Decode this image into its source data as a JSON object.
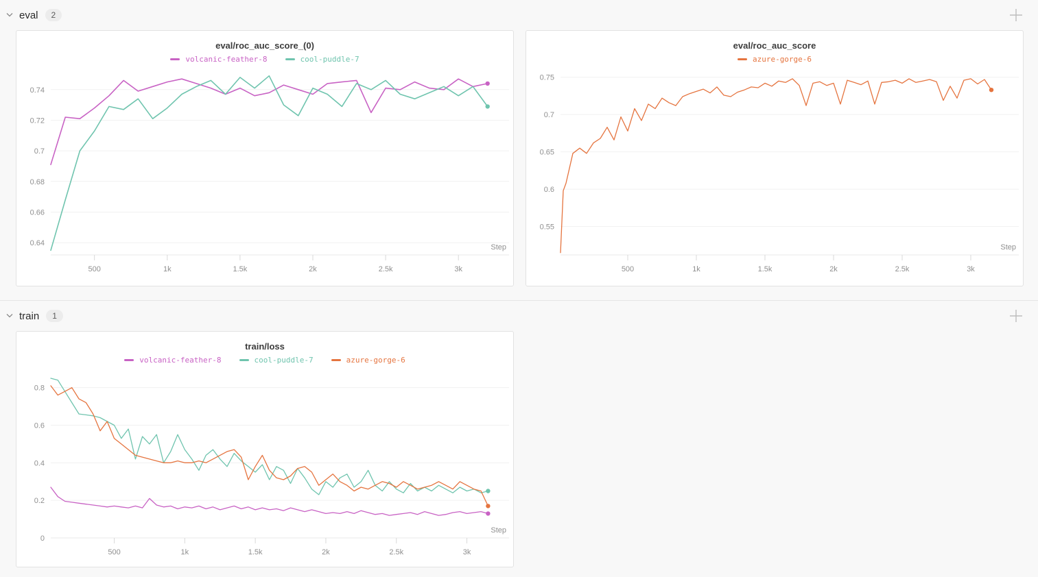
{
  "sections": [
    {
      "id": "eval",
      "label": "eval",
      "count": "2"
    },
    {
      "id": "train",
      "label": "train",
      "count": "1"
    }
  ],
  "icons": {
    "collapse": "chevron-down-icon",
    "add_panel": "plus-icon"
  },
  "runs": [
    {
      "name": "volcanic-feather-8",
      "color": "#c862c4"
    },
    {
      "name": "cool-puddle-7",
      "color": "#6fc4ae"
    },
    {
      "name": "azure-gorge-6",
      "color": "#e5743f"
    }
  ],
  "chart_data": [
    {
      "id": "eval_roc_auc_score_0",
      "section": "eval",
      "type": "line",
      "title": "eval/roc_auc_score_(0)",
      "xlabel": "Step",
      "grid": "horizontal",
      "legend_position": "top",
      "xlim": [
        200,
        3310
      ],
      "ylim": [
        0.632,
        0.752
      ],
      "x_ticks": [
        500,
        1000,
        1500,
        2000,
        2500,
        3000
      ],
      "x_tick_labels": [
        "500",
        "1k",
        "1.5k",
        "2k",
        "2.5k",
        "3k"
      ],
      "y_ticks": [
        0.64,
        0.66,
        0.68,
        0.7,
        0.72,
        0.74
      ],
      "y_tick_labels": [
        "0.64",
        "0.66",
        "0.68",
        "0.7",
        "0.72",
        "0.74"
      ],
      "x": [
        200,
        300,
        400,
        500,
        600,
        700,
        800,
        900,
        1000,
        1100,
        1200,
        1300,
        1400,
        1500,
        1600,
        1700,
        1800,
        1900,
        2000,
        2100,
        2200,
        2300,
        2400,
        2500,
        2600,
        2700,
        2800,
        2900,
        3000,
        3100,
        3200
      ],
      "series": [
        {
          "name": "volcanic-feather-8",
          "color": "#c862c4",
          "end_marker": true,
          "values": [
            0.691,
            0.722,
            0.721,
            0.728,
            0.736,
            0.746,
            0.739,
            0.742,
            0.745,
            0.747,
            0.744,
            0.741,
            0.737,
            0.741,
            0.736,
            0.738,
            0.743,
            0.74,
            0.737,
            0.744,
            0.745,
            0.746,
            0.725,
            0.741,
            0.74,
            0.745,
            0.741,
            0.74,
            0.747,
            0.742,
            0.744
          ]
        },
        {
          "name": "cool-puddle-7",
          "color": "#6fc4ae",
          "end_marker": true,
          "values": [
            0.635,
            0.668,
            0.7,
            0.713,
            0.729,
            0.727,
            0.734,
            0.721,
            0.728,
            0.737,
            0.742,
            0.746,
            0.737,
            0.748,
            0.741,
            0.749,
            0.73,
            0.723,
            0.741,
            0.737,
            0.729,
            0.744,
            0.74,
            0.746,
            0.737,
            0.734,
            0.738,
            0.742,
            0.736,
            0.742,
            0.729
          ]
        }
      ]
    },
    {
      "id": "eval_roc_auc_score",
      "section": "eval",
      "type": "line",
      "title": "eval/roc_auc_score",
      "xlabel": "Step",
      "grid": "horizontal",
      "legend_position": "top",
      "xlim": [
        10,
        3310
      ],
      "ylim": [
        0.512,
        0.758
      ],
      "x_ticks": [
        500,
        1000,
        1500,
        2000,
        2500,
        3000
      ],
      "x_tick_labels": [
        "500",
        "1k",
        "1.5k",
        "2k",
        "2.5k",
        "3k"
      ],
      "y_ticks": [
        0.55,
        0.6,
        0.65,
        0.7,
        0.75
      ],
      "y_tick_labels": [
        "0.55",
        "0.6",
        "0.65",
        "0.7",
        "0.75"
      ],
      "x": [
        10,
        30,
        50,
        100,
        150,
        200,
        250,
        300,
        350,
        400,
        450,
        500,
        550,
        600,
        650,
        700,
        750,
        800,
        850,
        900,
        950,
        1000,
        1050,
        1100,
        1150,
        1200,
        1250,
        1300,
        1350,
        1400,
        1450,
        1500,
        1550,
        1600,
        1650,
        1700,
        1750,
        1800,
        1850,
        1900,
        1950,
        2000,
        2050,
        2100,
        2150,
        2200,
        2250,
        2300,
        2350,
        2400,
        2450,
        2500,
        2550,
        2600,
        2650,
        2700,
        2750,
        2800,
        2850,
        2900,
        2950,
        3000,
        3050,
        3100,
        3150
      ],
      "series": [
        {
          "name": "azure-gorge-6",
          "color": "#e5743f",
          "end_marker": true,
          "values": [
            0.515,
            0.598,
            0.608,
            0.648,
            0.655,
            0.648,
            0.662,
            0.668,
            0.683,
            0.666,
            0.697,
            0.678,
            0.708,
            0.692,
            0.714,
            0.708,
            0.722,
            0.716,
            0.712,
            0.724,
            0.728,
            0.731,
            0.734,
            0.729,
            0.737,
            0.726,
            0.724,
            0.73,
            0.733,
            0.737,
            0.736,
            0.742,
            0.738,
            0.745,
            0.743,
            0.748,
            0.739,
            0.712,
            0.742,
            0.744,
            0.739,
            0.742,
            0.714,
            0.746,
            0.743,
            0.74,
            0.745,
            0.714,
            0.743,
            0.744,
            0.746,
            0.742,
            0.748,
            0.743,
            0.745,
            0.747,
            0.744,
            0.719,
            0.738,
            0.722,
            0.746,
            0.748,
            0.741,
            0.747,
            0.733
          ]
        }
      ]
    },
    {
      "id": "train_loss",
      "section": "train",
      "type": "line",
      "title": "train/loss",
      "xlabel": "Step",
      "grid": "horizontal",
      "legend_position": "top",
      "xlim": [
        50,
        3260
      ],
      "ylim": [
        0,
        0.89
      ],
      "x_ticks": [
        500,
        1000,
        1500,
        2000,
        2500,
        3000
      ],
      "x_tick_labels": [
        "500",
        "1k",
        "1.5k",
        "2k",
        "2.5k",
        "3k"
      ],
      "y_ticks": [
        0,
        0.2,
        0.4,
        0.6,
        0.8
      ],
      "y_tick_labels": [
        "0",
        "0.2",
        "0.4",
        "0.6",
        "0.8"
      ],
      "x": [
        50,
        100,
        150,
        200,
        250,
        300,
        350,
        400,
        450,
        500,
        550,
        600,
        650,
        700,
        750,
        800,
        850,
        900,
        950,
        1000,
        1050,
        1100,
        1150,
        1200,
        1250,
        1300,
        1350,
        1400,
        1450,
        1500,
        1550,
        1600,
        1650,
        1700,
        1750,
        1800,
        1850,
        1900,
        1950,
        2000,
        2050,
        2100,
        2150,
        2200,
        2250,
        2300,
        2350,
        2400,
        2450,
        2500,
        2550,
        2600,
        2650,
        2700,
        2750,
        2800,
        2850,
        2900,
        2950,
        3000,
        3050,
        3100,
        3150
      ],
      "series": [
        {
          "name": "volcanic-feather-8",
          "color": "#c862c4",
          "end_marker": true,
          "values": [
            0.27,
            0.22,
            0.195,
            0.19,
            0.185,
            0.18,
            0.175,
            0.17,
            0.165,
            0.17,
            0.165,
            0.16,
            0.17,
            0.16,
            0.21,
            0.175,
            0.165,
            0.17,
            0.155,
            0.165,
            0.16,
            0.17,
            0.155,
            0.165,
            0.15,
            0.16,
            0.17,
            0.155,
            0.165,
            0.15,
            0.16,
            0.15,
            0.155,
            0.145,
            0.16,
            0.15,
            0.14,
            0.15,
            0.14,
            0.13,
            0.135,
            0.13,
            0.14,
            0.13,
            0.145,
            0.135,
            0.125,
            0.13,
            0.12,
            0.125,
            0.13,
            0.135,
            0.125,
            0.14,
            0.13,
            0.12,
            0.125,
            0.135,
            0.14,
            0.13,
            0.135,
            0.14,
            0.13
          ]
        },
        {
          "name": "cool-puddle-7",
          "color": "#6fc4ae",
          "end_marker": true,
          "values": [
            0.85,
            0.84,
            0.78,
            0.72,
            0.66,
            0.655,
            0.65,
            0.64,
            0.62,
            0.6,
            0.53,
            0.58,
            0.42,
            0.54,
            0.5,
            0.55,
            0.4,
            0.46,
            0.55,
            0.47,
            0.42,
            0.36,
            0.44,
            0.47,
            0.42,
            0.38,
            0.45,
            0.41,
            0.38,
            0.35,
            0.39,
            0.31,
            0.38,
            0.36,
            0.29,
            0.37,
            0.32,
            0.26,
            0.23,
            0.3,
            0.27,
            0.32,
            0.34,
            0.27,
            0.3,
            0.36,
            0.28,
            0.25,
            0.3,
            0.26,
            0.24,
            0.29,
            0.25,
            0.27,
            0.25,
            0.28,
            0.26,
            0.24,
            0.27,
            0.25,
            0.26,
            0.24,
            0.25
          ]
        },
        {
          "name": "azure-gorge-6",
          "color": "#e5743f",
          "end_marker": true,
          "values": [
            0.81,
            0.76,
            0.78,
            0.8,
            0.74,
            0.72,
            0.66,
            0.57,
            0.62,
            0.53,
            0.5,
            0.47,
            0.44,
            0.43,
            0.42,
            0.41,
            0.4,
            0.4,
            0.41,
            0.4,
            0.4,
            0.41,
            0.4,
            0.42,
            0.44,
            0.46,
            0.47,
            0.43,
            0.31,
            0.38,
            0.44,
            0.36,
            0.32,
            0.31,
            0.33,
            0.37,
            0.38,
            0.35,
            0.28,
            0.31,
            0.34,
            0.3,
            0.28,
            0.25,
            0.27,
            0.26,
            0.28,
            0.3,
            0.29,
            0.27,
            0.3,
            0.28,
            0.26,
            0.27,
            0.28,
            0.3,
            0.28,
            0.26,
            0.3,
            0.28,
            0.26,
            0.25,
            0.17
          ]
        }
      ]
    }
  ]
}
